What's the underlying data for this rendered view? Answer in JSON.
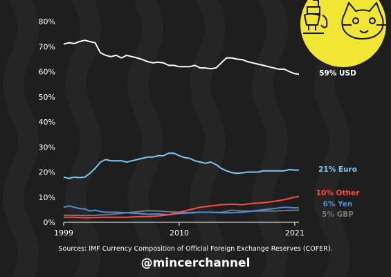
{
  "chart_data": {
    "type": "line",
    "title": "",
    "xlabel": "",
    "ylabel": "",
    "xlim": [
      1999,
      2021.4
    ],
    "ylim": [
      0,
      80
    ],
    "yticks": [
      "0%",
      "10%",
      "20%",
      "30%",
      "40%",
      "50%",
      "60%",
      "70%",
      "80%"
    ],
    "xticks": [
      {
        "value": 1999,
        "label": "1999"
      },
      {
        "value": 2010,
        "label": "2010"
      },
      {
        "value": 2021,
        "label": "2021"
      }
    ],
    "grid": false,
    "series": [
      {
        "name": "USD",
        "label": "59% USD",
        "color": "#ffffff",
        "points": [
          [
            1999.0,
            71.0
          ],
          [
            1999.5,
            71.5
          ],
          [
            2000.0,
            71.2
          ],
          [
            2000.5,
            72.0
          ],
          [
            2001.0,
            72.5
          ],
          [
            2001.5,
            72.0
          ],
          [
            2002.0,
            71.5
          ],
          [
            2002.5,
            67.5
          ],
          [
            2003.0,
            66.5
          ],
          [
            2003.5,
            66.0
          ],
          [
            2004.0,
            66.5
          ],
          [
            2004.5,
            65.5
          ],
          [
            2005.0,
            66.5
          ],
          [
            2005.5,
            66.0
          ],
          [
            2006.0,
            65.5
          ],
          [
            2006.5,
            64.8
          ],
          [
            2007.0,
            64.0
          ],
          [
            2007.5,
            63.5
          ],
          [
            2008.0,
            63.8
          ],
          [
            2008.5,
            63.5
          ],
          [
            2009.0,
            62.5
          ],
          [
            2009.5,
            62.5
          ],
          [
            2010.0,
            62.0
          ],
          [
            2010.5,
            62.0
          ],
          [
            2011.0,
            62.0
          ],
          [
            2011.5,
            62.5
          ],
          [
            2012.0,
            61.5
          ],
          [
            2012.5,
            61.5
          ],
          [
            2013.0,
            61.2
          ],
          [
            2013.5,
            61.5
          ],
          [
            2014.0,
            63.5
          ],
          [
            2014.5,
            65.5
          ],
          [
            2015.0,
            65.5
          ],
          [
            2015.5,
            65.0
          ],
          [
            2016.0,
            64.8
          ],
          [
            2016.5,
            64.0
          ],
          [
            2017.0,
            63.5
          ],
          [
            2017.5,
            63.0
          ],
          [
            2018.0,
            62.5
          ],
          [
            2018.5,
            62.0
          ],
          [
            2019.0,
            61.5
          ],
          [
            2019.5,
            61.0
          ],
          [
            2020.0,
            61.0
          ],
          [
            2020.5,
            60.0
          ],
          [
            2021.0,
            59.2
          ],
          [
            2021.4,
            59.0
          ]
        ]
      },
      {
        "name": "Euro",
        "label": "21% Euro",
        "color": "#7ec8f3",
        "points": [
          [
            1999.0,
            18.0
          ],
          [
            1999.5,
            17.5
          ],
          [
            2000.0,
            18.0
          ],
          [
            2000.5,
            17.8
          ],
          [
            2001.0,
            18.0
          ],
          [
            2001.5,
            19.5
          ],
          [
            2002.0,
            21.5
          ],
          [
            2002.5,
            24.0
          ],
          [
            2003.0,
            25.0
          ],
          [
            2003.5,
            24.5
          ],
          [
            2004.0,
            24.5
          ],
          [
            2004.5,
            24.5
          ],
          [
            2005.0,
            24.0
          ],
          [
            2005.5,
            24.5
          ],
          [
            2006.0,
            25.0
          ],
          [
            2006.5,
            25.5
          ],
          [
            2007.0,
            26.0
          ],
          [
            2007.5,
            26.0
          ],
          [
            2008.0,
            26.5
          ],
          [
            2008.5,
            26.5
          ],
          [
            2009.0,
            27.5
          ],
          [
            2009.5,
            27.5
          ],
          [
            2010.0,
            26.5
          ],
          [
            2010.5,
            25.8
          ],
          [
            2011.0,
            25.5
          ],
          [
            2011.5,
            24.5
          ],
          [
            2012.0,
            24.0
          ],
          [
            2012.5,
            23.5
          ],
          [
            2013.0,
            24.0
          ],
          [
            2013.5,
            23.0
          ],
          [
            2014.0,
            21.5
          ],
          [
            2014.5,
            20.5
          ],
          [
            2015.0,
            19.8
          ],
          [
            2015.5,
            19.5
          ],
          [
            2016.0,
            19.7
          ],
          [
            2016.5,
            20.0
          ],
          [
            2017.0,
            20.0
          ],
          [
            2017.5,
            20.0
          ],
          [
            2018.0,
            20.5
          ],
          [
            2018.5,
            20.5
          ],
          [
            2019.0,
            20.5
          ],
          [
            2019.5,
            20.5
          ],
          [
            2020.0,
            20.5
          ],
          [
            2020.5,
            21.0
          ],
          [
            2021.0,
            20.8
          ],
          [
            2021.4,
            20.8
          ]
        ]
      },
      {
        "name": "Other",
        "label": "10% Other",
        "color": "#ff4b43",
        "points": [
          [
            1999.0,
            2.0
          ],
          [
            2000.0,
            2.0
          ],
          [
            2001.0,
            1.8
          ],
          [
            2002.0,
            1.9
          ],
          [
            2003.0,
            2.0
          ],
          [
            2004.0,
            2.0
          ],
          [
            2005.0,
            2.0
          ],
          [
            2006.0,
            2.2
          ],
          [
            2007.0,
            2.3
          ],
          [
            2008.0,
            2.5
          ],
          [
            2009.0,
            3.0
          ],
          [
            2010.0,
            4.0
          ],
          [
            2011.0,
            5.0
          ],
          [
            2012.0,
            6.0
          ],
          [
            2013.0,
            6.5
          ],
          [
            2014.0,
            7.0
          ],
          [
            2015.0,
            7.2
          ],
          [
            2016.0,
            7.0
          ],
          [
            2017.0,
            7.5
          ],
          [
            2018.0,
            7.8
          ],
          [
            2019.0,
            8.3
          ],
          [
            2020.0,
            9.0
          ],
          [
            2021.0,
            10.0
          ],
          [
            2021.4,
            10.2
          ]
        ]
      },
      {
        "name": "Yen",
        "label": "6% Yen",
        "color": "#4a8fe0",
        "points": [
          [
            1999.0,
            6.0
          ],
          [
            1999.5,
            6.5
          ],
          [
            2000.0,
            6.0
          ],
          [
            2000.5,
            5.5
          ],
          [
            2001.0,
            5.3
          ],
          [
            2001.5,
            4.5
          ],
          [
            2002.0,
            4.8
          ],
          [
            2002.5,
            4.3
          ],
          [
            2003.0,
            4.0
          ],
          [
            2004.0,
            4.0
          ],
          [
            2005.0,
            3.8
          ],
          [
            2006.0,
            3.5
          ],
          [
            2007.0,
            3.2
          ],
          [
            2008.0,
            3.3
          ],
          [
            2009.0,
            3.0
          ],
          [
            2010.0,
            3.5
          ],
          [
            2011.0,
            3.7
          ],
          [
            2012.0,
            4.0
          ],
          [
            2013.0,
            4.0
          ],
          [
            2014.0,
            3.8
          ],
          [
            2015.0,
            3.8
          ],
          [
            2016.0,
            4.0
          ],
          [
            2017.0,
            4.5
          ],
          [
            2018.0,
            5.0
          ],
          [
            2019.0,
            5.5
          ],
          [
            2020.0,
            6.0
          ],
          [
            2021.0,
            5.8
          ],
          [
            2021.4,
            5.7
          ]
        ]
      },
      {
        "name": "GBP",
        "label": "5% GBP",
        "color": "#777777",
        "points": [
          [
            1999.0,
            2.8
          ],
          [
            2000.0,
            2.8
          ],
          [
            2001.0,
            2.7
          ],
          [
            2002.0,
            2.8
          ],
          [
            2003.0,
            3.0
          ],
          [
            2004.0,
            3.3
          ],
          [
            2005.0,
            3.8
          ],
          [
            2006.0,
            4.2
          ],
          [
            2007.0,
            4.6
          ],
          [
            2008.0,
            4.5
          ],
          [
            2009.0,
            4.2
          ],
          [
            2010.0,
            4.0
          ],
          [
            2011.0,
            3.9
          ],
          [
            2012.0,
            4.0
          ],
          [
            2013.0,
            4.0
          ],
          [
            2014.0,
            4.0
          ],
          [
            2015.0,
            4.8
          ],
          [
            2016.0,
            4.5
          ],
          [
            2017.0,
            4.5
          ],
          [
            2018.0,
            4.5
          ],
          [
            2019.0,
            4.5
          ],
          [
            2020.0,
            4.7
          ],
          [
            2021.0,
            4.8
          ],
          [
            2021.4,
            4.8
          ]
        ]
      }
    ]
  },
  "footer": {
    "source": "Sources: IMF Currency Composition of Official Foreign Exchange Reserves (COFER).",
    "handle": "@mincerchannel"
  },
  "colors": {
    "background": "#1e1e1e",
    "stripes": "#252525",
    "logo_bg": "#f2e634"
  }
}
